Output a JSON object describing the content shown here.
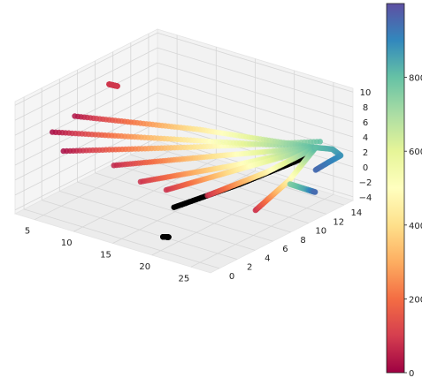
{
  "chart_data": {
    "type": "scatter",
    "projection": "3d",
    "colormap": "Spectral",
    "colorbar": {
      "range": [
        0,
        1000
      ],
      "ticks": [
        0,
        200,
        400,
        600,
        800
      ],
      "tick_labels": [
        "0",
        "200",
        "400",
        "600",
        "800"
      ]
    },
    "axes": {
      "x": {
        "ticks": [
          5,
          10,
          15,
          20,
          25
        ],
        "tick_labels": [
          "5",
          "10",
          "15",
          "20",
          "25"
        ]
      },
      "y": {
        "ticks": [
          0,
          2,
          4,
          6,
          8,
          10,
          12,
          14
        ],
        "tick_labels": [
          "0",
          "2",
          "4",
          "6",
          "8",
          "10",
          "12",
          "14"
        ]
      },
      "z": {
        "ticks": [
          -4,
          -2,
          0,
          2,
          4,
          6,
          8,
          10
        ],
        "tick_labels": [
          "−4",
          "−2",
          "0",
          "2",
          "4",
          "6",
          "8",
          "10"
        ]
      },
      "grid": true
    },
    "series": [
      {
        "color_value_start": 20,
        "color_value_end": 800,
        "x": [
          3,
          14,
          25
        ],
        "y": [
          4,
          9,
          13.5
        ],
        "z": [
          1,
          2,
          3.5
        ]
      },
      {
        "color_value_start": 20,
        "color_value_end": 820,
        "x": [
          5,
          15,
          25
        ],
        "y": [
          1,
          7,
          13
        ],
        "z": [
          6,
          4.5,
          3
        ]
      },
      {
        "color_value_start": 30,
        "color_value_end": 820,
        "x": [
          9,
          17,
          25
        ],
        "y": [
          0,
          7,
          13
        ],
        "z": [
          10,
          6.5,
          3
        ]
      },
      {
        "color_value_start": 60,
        "color_value_end": 820,
        "x": [
          14,
          20,
          25
        ],
        "y": [
          0,
          7,
          13
        ],
        "z": [
          5,
          4,
          3
        ]
      },
      {
        "color_value_start": 80,
        "color_value_end": 820,
        "x": [
          14,
          20,
          25
        ],
        "y": [
          3,
          8,
          13
        ],
        "z": [
          1,
          2,
          3
        ]
      },
      {
        "color_value_start": 80,
        "color_value_end": 820,
        "x": [
          15,
          20,
          25
        ],
        "y": [
          5,
          9,
          13
        ],
        "z": [
          -1,
          1,
          3
        ]
      },
      {
        "color_value_start": 80,
        "color_value_end": 820,
        "x": [
          18,
          22,
          25
        ],
        "y": [
          7,
          10,
          13
        ],
        "z": [
          -2,
          0.5,
          3
        ]
      },
      {
        "color_value_start": 80,
        "color_value_end": 820,
        "x": [
          23,
          24.5,
          25
        ],
        "y": [
          8,
          10.5,
          13
        ],
        "z": [
          -3,
          0,
          3
        ]
      },
      {
        "color_value_start": 90,
        "color_value_end": 90,
        "x": [
          2,
          2.5
        ],
        "y": [
          10,
          10.5
        ],
        "z": [
          6,
          5.6
        ]
      },
      {
        "color_value_start": 800,
        "color_value_end": 950,
        "x": [
          25,
          26,
          26.5,
          26,
          25
        ],
        "y": [
          13,
          14,
          14.5,
          13.5,
          13
        ],
        "z": [
          3,
          2.5,
          1.5,
          1,
          0
        ]
      },
      {
        "color_value_start": 750,
        "color_value_end": 950,
        "x": [
          24,
          25,
          25.5
        ],
        "y": [
          11,
          12,
          12.5
        ],
        "z": [
          -1,
          -2,
          -2.5
        ]
      }
    ],
    "black_series": [
      {
        "x": [
          16,
          20,
          24
        ],
        "y": [
          5,
          9,
          13
        ],
        "z": [
          -3,
          -1,
          1.5
        ]
      },
      {
        "x": [
          18,
          18.5
        ],
        "y": [
          2,
          2.2
        ],
        "z": [
          -4.5,
          -4.5
        ]
      }
    ]
  }
}
